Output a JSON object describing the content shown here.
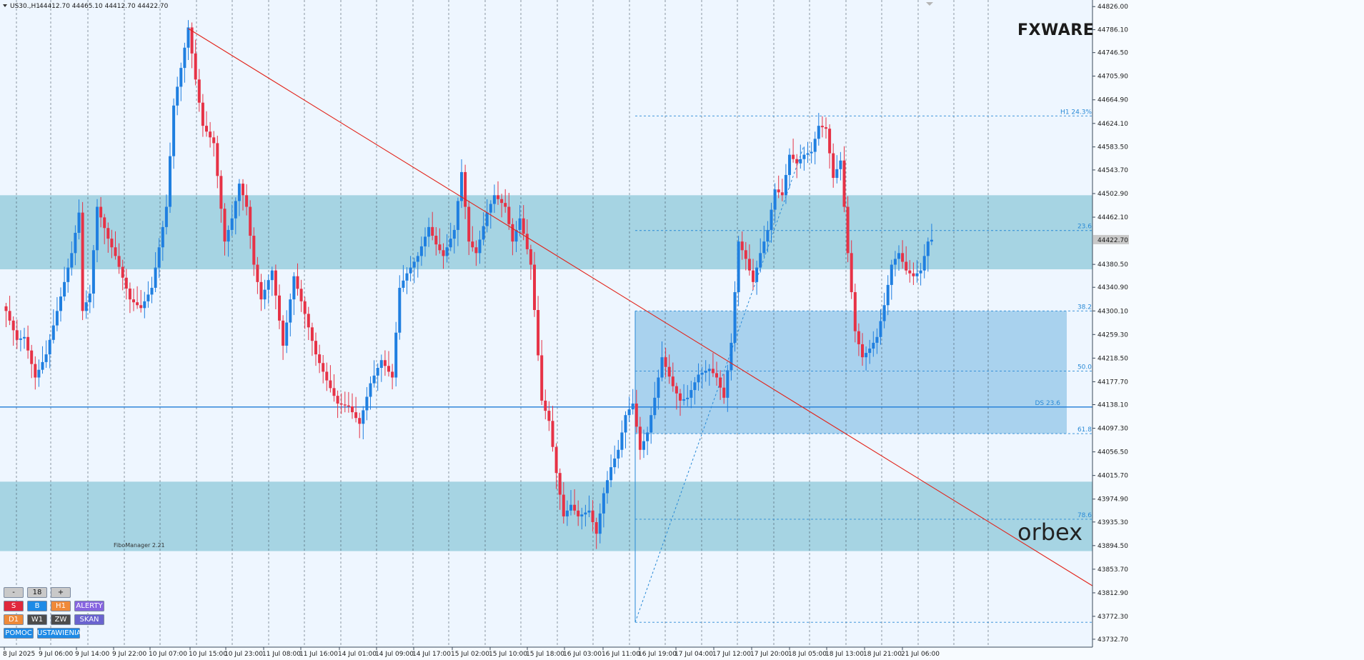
{
  "header": {
    "symbol": "US30.,H1",
    "ohlc": "44412.70 44465.10 44412.70 44422.70"
  },
  "brand": {
    "top_logo": "FXWARE",
    "bottom_logo": "orbex"
  },
  "indicator_label": "FiboManager 2.21",
  "colors": {
    "background": "#eef6ff",
    "bull": "#1f7fe0",
    "bear": "#e63246",
    "zone_dark": "#a6d4e3",
    "zone_light": "#a9d2ee",
    "trendline": "#e2231a",
    "level_line": "#1e7bd6",
    "fib_text": "#2a8ad6"
  },
  "panel": {
    "row1": {
      "minus": "-",
      "value": "18",
      "plus": "+"
    },
    "row2": [
      "S",
      "B",
      "H1",
      "ALERTY"
    ],
    "row3": [
      "D1",
      "W1",
      "ZW",
      "SKAN"
    ],
    "row4": [
      "POMOC",
      "USTAWIENIA"
    ]
  },
  "price_label": "44422.70",
  "chart_data": {
    "type": "candlestick",
    "ylim": [
      43740,
      44830
    ],
    "y_ticks": [
      "44826.00",
      "44786.10",
      "44746.50",
      "44705.90",
      "44664.90",
      "44624.10",
      "44583.50",
      "44543.70",
      "44502.90",
      "44462.10",
      "44380.50",
      "44340.90",
      "44300.10",
      "44259.30",
      "44218.50",
      "44177.70",
      "44138.10",
      "44097.30",
      "44056.50",
      "44015.70",
      "43974.90",
      "43935.30",
      "43894.50",
      "43853.70",
      "43812.90",
      "43772.30",
      "43732.70"
    ],
    "x_ticks": [
      "8 Jul 2025",
      "9 Jul 06:00",
      "9 Jul 14:00",
      "9 Jul 22:00",
      "10 Jul 07:00",
      "10 Jul 15:00",
      "10 Jul 23:00",
      "11 Jul 08:00",
      "11 Jul 16:00",
      "14 Jul 01:00",
      "14 Jul 09:00",
      "14 Jul 17:00",
      "15 Jul 02:00",
      "15 Jul 10:00",
      "15 Jul 18:00",
      "16 Jul 03:00",
      "16 Jul 11:00",
      "16 Jul 19:00",
      "17 Jul 04:00",
      "17 Jul 12:00",
      "17 Jul 20:00",
      "18 Jul 05:00",
      "18 Jul 13:00",
      "18 Jul 21:00",
      "21 Jul 06:00"
    ],
    "candle_anchors": [
      [
        0,
        44300
      ],
      [
        3,
        44250
      ],
      [
        5,
        44255
      ],
      [
        8,
        44185
      ],
      [
        11,
        44225
      ],
      [
        14,
        44300
      ],
      [
        18,
        44400
      ],
      [
        20,
        44470
      ],
      [
        21,
        44300
      ],
      [
        23,
        44330
      ],
      [
        25,
        44480
      ],
      [
        28,
        44425
      ],
      [
        30,
        44395
      ],
      [
        34,
        44320
      ],
      [
        37,
        44305
      ],
      [
        40,
        44340
      ],
      [
        44,
        44480
      ],
      [
        46,
        44655
      ],
      [
        48,
        44720
      ],
      [
        50,
        44790
      ],
      [
        52,
        44700
      ],
      [
        54,
        44620
      ],
      [
        57,
        44590
      ],
      [
        60,
        44420
      ],
      [
        62,
        44460
      ],
      [
        64,
        44520
      ],
      [
        66,
        44480
      ],
      [
        68,
        44380
      ],
      [
        70,
        44320
      ],
      [
        73,
        44370
      ],
      [
        76,
        44240
      ],
      [
        79,
        44360
      ],
      [
        82,
        44295
      ],
      [
        85,
        44225
      ],
      [
        88,
        44180
      ],
      [
        91,
        44140
      ],
      [
        94,
        44135
      ],
      [
        97,
        44105
      ],
      [
        100,
        44175
      ],
      [
        103,
        44215
      ],
      [
        106,
        44185
      ],
      [
        108,
        44340
      ],
      [
        110,
        44365
      ],
      [
        113,
        44395
      ],
      [
        116,
        44445
      ],
      [
        118,
        44415
      ],
      [
        120,
        44395
      ],
      [
        123,
        44440
      ],
      [
        125,
        44540
      ],
      [
        127,
        44420
      ],
      [
        129,
        44400
      ],
      [
        132,
        44470
      ],
      [
        134,
        44500
      ],
      [
        137,
        44480
      ],
      [
        139,
        44420
      ],
      [
        141,
        44460
      ],
      [
        144,
        44380
      ],
      [
        147,
        44145
      ],
      [
        149,
        44110
      ],
      [
        151,
        44020
      ],
      [
        153,
        43945
      ],
      [
        155,
        43965
      ],
      [
        157,
        43945
      ],
      [
        160,
        43955
      ],
      [
        162,
        43915
      ],
      [
        164,
        43985
      ],
      [
        166,
        44030
      ],
      [
        168,
        44060
      ],
      [
        170,
        44120
      ],
      [
        172,
        44140
      ],
      [
        174,
        44060
      ],
      [
        176,
        44090
      ],
      [
        178,
        44150
      ],
      [
        180,
        44220
      ],
      [
        183,
        44170
      ],
      [
        185,
        44145
      ],
      [
        187,
        44150
      ],
      [
        190,
        44190
      ],
      [
        193,
        44200
      ],
      [
        195,
        44185
      ],
      [
        197,
        44150
      ],
      [
        199,
        44245
      ],
      [
        201,
        44420
      ],
      [
        203,
        44390
      ],
      [
        205,
        44350
      ],
      [
        207,
        44400
      ],
      [
        209,
        44440
      ],
      [
        211,
        44510
      ],
      [
        213,
        44500
      ],
      [
        215,
        44570
      ],
      [
        217,
        44555
      ],
      [
        219,
        44570
      ],
      [
        221,
        44575
      ],
      [
        223,
        44620
      ],
      [
        225,
        44615
      ],
      [
        227,
        44530
      ],
      [
        229,
        44560
      ],
      [
        231,
        44400
      ],
      [
        233,
        44265
      ],
      [
        235,
        44220
      ],
      [
        237,
        44235
      ],
      [
        239,
        44255
      ],
      [
        241,
        44310
      ],
      [
        243,
        44380
      ],
      [
        245,
        44400
      ],
      [
        247,
        44370
      ],
      [
        249,
        44360
      ],
      [
        251,
        44370
      ],
      [
        253,
        44420
      ],
      [
        254,
        44423
      ]
    ],
    "zones": [
      {
        "from": 44372,
        "to": 44500,
        "color": "zone_dark"
      },
      {
        "from": 43885,
        "to": 44005,
        "color": "zone_dark"
      },
      {
        "from": 44088,
        "to": 44300,
        "color": "zone_light"
      }
    ],
    "trendline": {
      "from": [
        44788,
        50
      ],
      "to": [
        43973,
        260
      ]
    },
    "horizontal_line": {
      "price": 44134
    },
    "fib_levels": [
      {
        "label": "H1 24.3%",
        "price": 44637
      },
      {
        "label": "23.6",
        "price": 44439
      },
      {
        "label": "38.2",
        "price": 44300
      },
      {
        "label": "50.0",
        "price": 44196
      },
      {
        "label": "DS 23.6",
        "price": 44134
      },
      {
        "label": "61.8",
        "price": 44088
      },
      {
        "label": "78.6",
        "price": 43940
      },
      {
        "label": "",
        "price": 43762
      }
    ]
  }
}
